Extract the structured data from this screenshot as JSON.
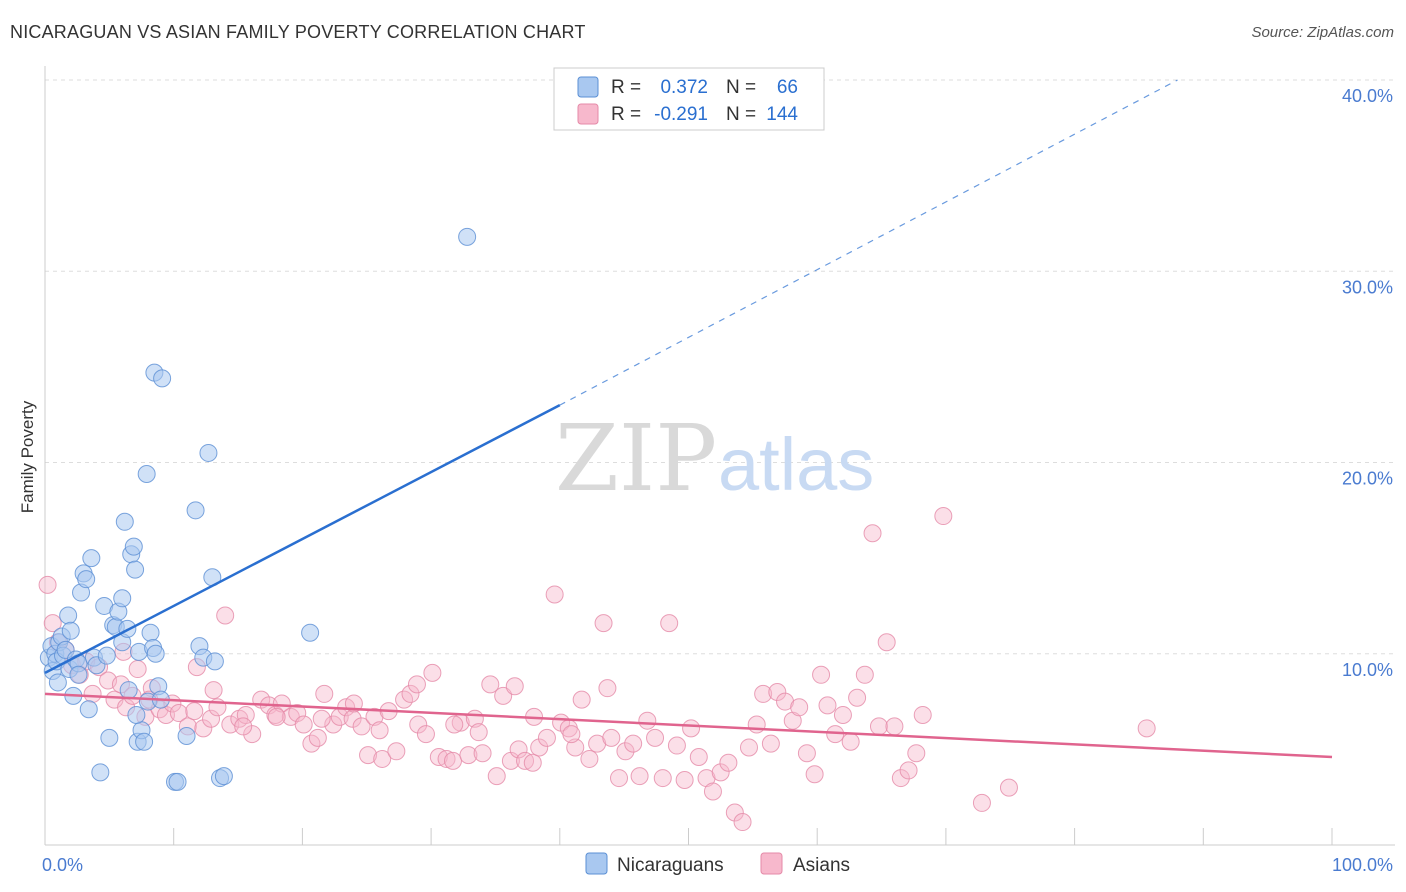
{
  "header": {
    "title": "NICARAGUAN VS ASIAN FAMILY POVERTY CORRELATION CHART",
    "source": "Source: ZipAtlas.com"
  },
  "watermark": {
    "zip": "ZIP",
    "atlas": "atlas"
  },
  "chart_data": {
    "type": "scatter",
    "title": "NICARAGUAN VS ASIAN FAMILY POVERTY CORRELATION CHART",
    "xlabel": "",
    "ylabel": "Family Poverty",
    "xlim": [
      0,
      100
    ],
    "ylim": [
      0,
      40
    ],
    "x_tick_labels": [
      "0.0%",
      "100.0%"
    ],
    "y_ticks": [
      10,
      20,
      30,
      40
    ],
    "y_tick_labels": [
      "10.0%",
      "20.0%",
      "30.0%",
      "40.0%"
    ],
    "legend_position": "top-center",
    "colors": {
      "nicaraguans_fill": "#a9c8f0",
      "nicaraguans_stroke": "#5b8fd4",
      "nicaraguans_line": "#2a6fd0",
      "asians_fill": "#f7b8cc",
      "asians_stroke": "#e58aa8",
      "asians_line": "#e0648e",
      "axis_text": "#4a7bd0"
    },
    "stats": [
      {
        "r_label": "R =",
        "r_value": "0.372",
        "n_label": "N =",
        "n_value": "66"
      },
      {
        "r_label": "R =",
        "r_value": "-0.291",
        "n_label": "N =",
        "n_value": "144"
      }
    ],
    "series": [
      {
        "name": "Nicaraguans",
        "trend": {
          "x0": 0,
          "y0": 9.0,
          "x1": 40,
          "y1": 23.0,
          "dash_x1": 88,
          "dash_y1": 40
        },
        "points": [
          [
            0.3,
            9.8
          ],
          [
            0.5,
            10.4
          ],
          [
            0.6,
            9.1
          ],
          [
            0.8,
            10.0
          ],
          [
            0.9,
            9.6
          ],
          [
            1.0,
            8.5
          ],
          [
            1.1,
            10.6
          ],
          [
            1.3,
            10.9
          ],
          [
            1.4,
            9.9
          ],
          [
            1.6,
            10.2
          ],
          [
            1.8,
            12.0
          ],
          [
            1.9,
            9.2
          ],
          [
            2.0,
            11.2
          ],
          [
            2.2,
            7.8
          ],
          [
            2.4,
            9.7
          ],
          [
            2.6,
            9.5
          ],
          [
            2.8,
            13.2
          ],
          [
            3.0,
            14.2
          ],
          [
            3.2,
            13.9
          ],
          [
            3.4,
            7.1
          ],
          [
            3.6,
            15.0
          ],
          [
            3.8,
            9.8
          ],
          [
            4.0,
            9.4
          ],
          [
            4.3,
            3.8
          ],
          [
            4.6,
            12.5
          ],
          [
            4.8,
            9.9
          ],
          [
            5.0,
            5.6
          ],
          [
            5.3,
            11.5
          ],
          [
            5.5,
            11.4
          ],
          [
            5.7,
            12.2
          ],
          [
            6.0,
            10.6
          ],
          [
            6.0,
            12.9
          ],
          [
            6.2,
            16.9
          ],
          [
            6.4,
            11.3
          ],
          [
            6.5,
            8.1
          ],
          [
            6.7,
            15.2
          ],
          [
            6.9,
            15.6
          ],
          [
            7.0,
            14.4
          ],
          [
            7.2,
            5.4
          ],
          [
            7.3,
            10.1
          ],
          [
            7.5,
            6.0
          ],
          [
            7.7,
            5.4
          ],
          [
            7.9,
            19.4
          ],
          [
            8.0,
            7.5
          ],
          [
            8.2,
            11.1
          ],
          [
            8.4,
            10.3
          ],
          [
            8.6,
            10.0
          ],
          [
            8.8,
            8.3
          ],
          [
            9.0,
            7.6
          ],
          [
            8.5,
            24.7
          ],
          [
            9.1,
            24.4
          ],
          [
            10.1,
            3.3
          ],
          [
            10.3,
            3.3
          ],
          [
            11.0,
            5.7
          ],
          [
            11.7,
            17.5
          ],
          [
            12.0,
            10.4
          ],
          [
            12.3,
            9.8
          ],
          [
            12.7,
            20.5
          ],
          [
            13.0,
            14.0
          ],
          [
            13.2,
            9.6
          ],
          [
            13.6,
            3.5
          ],
          [
            13.9,
            3.6
          ],
          [
            20.6,
            11.1
          ],
          [
            32.8,
            31.8
          ],
          [
            7.1,
            6.8
          ],
          [
            2.6,
            8.9
          ]
        ]
      },
      {
        "name": "Asians",
        "trend": {
          "x0": 0,
          "y0": 7.9,
          "x1": 100,
          "y1": 4.6
        },
        "points": [
          [
            0.2,
            13.6
          ],
          [
            0.6,
            11.6
          ],
          [
            1.0,
            10.6
          ],
          [
            1.6,
            10.2
          ],
          [
            2.1,
            9.4
          ],
          [
            2.7,
            8.9
          ],
          [
            3.2,
            9.6
          ],
          [
            3.7,
            7.9
          ],
          [
            4.2,
            9.3
          ],
          [
            4.9,
            8.6
          ],
          [
            5.4,
            7.6
          ],
          [
            5.9,
            8.4
          ],
          [
            6.3,
            7.2
          ],
          [
            6.8,
            7.8
          ],
          [
            7.2,
            9.2
          ],
          [
            7.8,
            6.7
          ],
          [
            8.3,
            8.2
          ],
          [
            8.9,
            7.1
          ],
          [
            9.4,
            6.8
          ],
          [
            9.9,
            7.4
          ],
          [
            10.4,
            6.9
          ],
          [
            11.1,
            6.2
          ],
          [
            11.8,
            9.3
          ],
          [
            12.3,
            6.1
          ],
          [
            12.9,
            6.6
          ],
          [
            13.4,
            7.2
          ],
          [
            14.0,
            12.0
          ],
          [
            14.4,
            6.3
          ],
          [
            15.1,
            6.6
          ],
          [
            15.6,
            6.8
          ],
          [
            16.1,
            5.8
          ],
          [
            16.8,
            7.6
          ],
          [
            17.4,
            7.3
          ],
          [
            17.9,
            6.8
          ],
          [
            18.4,
            7.4
          ],
          [
            19.1,
            6.7
          ],
          [
            19.6,
            6.9
          ],
          [
            20.1,
            6.3
          ],
          [
            20.7,
            5.3
          ],
          [
            21.2,
            5.6
          ],
          [
            21.7,
            7.9
          ],
          [
            22.4,
            6.3
          ],
          [
            22.9,
            6.7
          ],
          [
            23.4,
            7.2
          ],
          [
            23.9,
            6.6
          ],
          [
            24.6,
            6.2
          ],
          [
            25.1,
            4.7
          ],
          [
            25.6,
            6.7
          ],
          [
            26.2,
            4.5
          ],
          [
            26.7,
            7.0
          ],
          [
            27.3,
            4.9
          ],
          [
            27.9,
            7.6
          ],
          [
            28.4,
            7.9
          ],
          [
            29.0,
            6.3
          ],
          [
            29.6,
            5.8
          ],
          [
            30.1,
            9.0
          ],
          [
            30.6,
            4.6
          ],
          [
            31.2,
            4.5
          ],
          [
            31.7,
            4.4
          ],
          [
            32.3,
            6.4
          ],
          [
            32.9,
            4.7
          ],
          [
            33.4,
            6.6
          ],
          [
            34.0,
            4.8
          ],
          [
            34.6,
            8.4
          ],
          [
            35.1,
            3.6
          ],
          [
            35.6,
            7.8
          ],
          [
            36.2,
            4.4
          ],
          [
            36.8,
            5.0
          ],
          [
            37.3,
            4.4
          ],
          [
            37.9,
            4.3
          ],
          [
            38.4,
            5.1
          ],
          [
            39.0,
            5.6
          ],
          [
            39.6,
            13.1
          ],
          [
            40.1,
            6.4
          ],
          [
            40.7,
            6.1
          ],
          [
            41.2,
            5.1
          ],
          [
            41.7,
            7.6
          ],
          [
            42.3,
            4.5
          ],
          [
            42.9,
            5.3
          ],
          [
            43.4,
            11.6
          ],
          [
            44.0,
            5.6
          ],
          [
            44.6,
            3.5
          ],
          [
            45.1,
            4.9
          ],
          [
            45.7,
            5.3
          ],
          [
            46.2,
            3.6
          ],
          [
            46.8,
            6.5
          ],
          [
            47.4,
            5.6
          ],
          [
            48.0,
            3.5
          ],
          [
            48.5,
            11.6
          ],
          [
            49.1,
            5.2
          ],
          [
            49.7,
            3.4
          ],
          [
            50.2,
            6.1
          ],
          [
            50.8,
            4.6
          ],
          [
            51.4,
            3.5
          ],
          [
            51.9,
            2.8
          ],
          [
            52.5,
            3.8
          ],
          [
            53.1,
            4.3
          ],
          [
            53.6,
            1.7
          ],
          [
            54.2,
            1.2
          ],
          [
            54.7,
            5.1
          ],
          [
            55.3,
            6.3
          ],
          [
            55.8,
            7.9
          ],
          [
            56.4,
            5.3
          ],
          [
            56.9,
            8.0
          ],
          [
            57.5,
            7.5
          ],
          [
            58.1,
            6.5
          ],
          [
            58.6,
            7.2
          ],
          [
            59.2,
            4.8
          ],
          [
            59.8,
            3.7
          ],
          [
            60.3,
            8.9
          ],
          [
            60.8,
            7.3
          ],
          [
            61.4,
            5.8
          ],
          [
            62.0,
            6.8
          ],
          [
            62.6,
            5.4
          ],
          [
            63.1,
            7.7
          ],
          [
            63.7,
            8.9
          ],
          [
            64.3,
            16.3
          ],
          [
            64.8,
            6.2
          ],
          [
            65.4,
            10.6
          ],
          [
            66.0,
            6.2
          ],
          [
            66.5,
            3.5
          ],
          [
            67.1,
            3.9
          ],
          [
            67.7,
            4.8
          ],
          [
            68.2,
            6.8
          ],
          [
            69.8,
            17.2
          ],
          [
            72.8,
            2.2
          ],
          [
            74.9,
            3.0
          ],
          [
            85.6,
            6.1
          ],
          [
            6.1,
            10.1
          ],
          [
            8.1,
            7.6
          ],
          [
            11.6,
            7.0
          ],
          [
            13.1,
            8.1
          ],
          [
            15.4,
            6.2
          ],
          [
            18.0,
            6.7
          ],
          [
            21.5,
            6.6
          ],
          [
            24.0,
            7.4
          ],
          [
            26.0,
            6.0
          ],
          [
            28.9,
            8.4
          ],
          [
            31.8,
            6.3
          ],
          [
            33.7,
            5.9
          ],
          [
            36.5,
            8.3
          ],
          [
            38.0,
            6.7
          ],
          [
            40.9,
            5.8
          ],
          [
            43.7,
            8.2
          ]
        ]
      }
    ]
  }
}
